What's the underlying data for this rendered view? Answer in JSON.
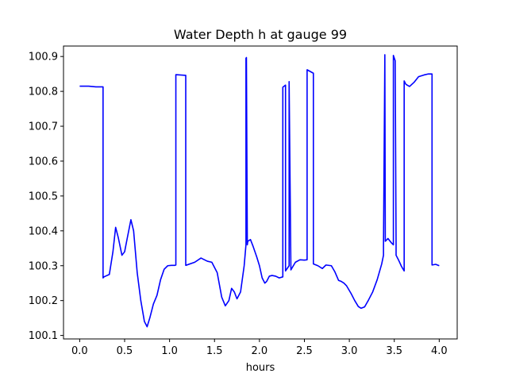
{
  "chart_data": {
    "type": "line",
    "title": "Water Depth h at gauge 99",
    "xlabel": "hours",
    "ylabel": "",
    "xlim": [
      -0.18,
      4.2
    ],
    "ylim": [
      100.09,
      100.93
    ],
    "xticks": [
      0.0,
      0.5,
      1.0,
      1.5,
      2.0,
      2.5,
      3.0,
      3.5,
      4.0
    ],
    "xtick_labels": [
      "0.0",
      "0.5",
      "1.0",
      "1.5",
      "2.0",
      "2.5",
      "3.0",
      "3.5",
      "4.0"
    ],
    "yticks": [
      100.1,
      100.2,
      100.3,
      100.4,
      100.5,
      100.6,
      100.7,
      100.8,
      100.9
    ],
    "ytick_labels": [
      "100.1",
      "100.2",
      "100.3",
      "100.4",
      "100.5",
      "100.6",
      "100.7",
      "100.8",
      "100.9"
    ],
    "grid": false,
    "legend": "none",
    "series": [
      {
        "color": "#0000ff",
        "x": [
          0.0,
          0.1,
          0.18,
          0.26,
          0.26,
          0.27,
          0.33,
          0.37,
          0.4,
          0.43,
          0.47,
          0.5,
          0.53,
          0.57,
          0.6,
          0.64,
          0.68,
          0.72,
          0.75,
          0.78,
          0.82,
          0.86,
          0.9,
          0.94,
          0.98,
          1.02,
          1.06,
          1.07,
          1.07,
          1.18,
          1.18,
          1.28,
          1.35,
          1.42,
          1.47,
          1.53,
          1.58,
          1.62,
          1.66,
          1.69,
          1.72,
          1.75,
          1.79,
          1.83,
          1.85,
          1.85,
          1.855,
          1.865,
          1.87,
          1.9,
          1.93,
          1.97,
          2.0,
          2.03,
          2.06,
          2.08,
          2.11,
          2.14,
          2.18,
          2.22,
          2.26,
          2.26,
          2.29,
          2.29,
          2.33,
          2.33,
          2.35,
          2.4,
          2.45,
          2.5,
          2.53,
          2.53,
          2.6,
          2.6,
          2.65,
          2.7,
          2.74,
          2.8,
          2.84,
          2.88,
          2.91,
          2.94,
          2.97,
          3.02,
          3.06,
          3.1,
          3.13,
          3.17,
          3.21,
          3.26,
          3.31,
          3.36,
          3.38,
          3.38,
          3.395,
          3.4,
          3.43,
          3.47,
          3.49,
          3.49,
          3.51,
          3.52,
          3.52,
          3.55,
          3.58,
          3.61,
          3.61,
          3.63,
          3.67,
          3.72,
          3.77,
          3.83,
          3.88,
          3.92,
          3.92,
          3.96,
          4.0
        ],
        "y": [
          100.815,
          100.815,
          100.813,
          100.813,
          100.265,
          100.268,
          100.275,
          100.34,
          100.41,
          100.38,
          100.33,
          100.34,
          100.38,
          100.432,
          100.4,
          100.28,
          100.2,
          100.14,
          100.125,
          100.15,
          100.19,
          100.215,
          100.26,
          100.29,
          100.3,
          100.301,
          100.301,
          100.302,
          100.848,
          100.846,
          100.301,
          100.31,
          100.322,
          100.313,
          100.31,
          100.28,
          100.21,
          100.185,
          100.2,
          100.235,
          100.225,
          100.205,
          100.225,
          100.3,
          100.36,
          100.895,
          100.897,
          100.36,
          100.37,
          100.375,
          100.355,
          100.325,
          100.3,
          100.265,
          100.25,
          100.255,
          100.27,
          100.272,
          100.27,
          100.265,
          100.268,
          100.812,
          100.818,
          100.285,
          100.3,
          100.828,
          100.288,
          100.31,
          100.317,
          100.316,
          100.317,
          100.862,
          100.852,
          100.305,
          100.3,
          100.292,
          100.302,
          100.3,
          100.282,
          100.258,
          100.255,
          100.25,
          100.242,
          100.22,
          100.2,
          100.183,
          100.178,
          100.182,
          100.2,
          100.225,
          100.26,
          100.305,
          100.33,
          100.355,
          100.905,
          100.37,
          100.378,
          100.365,
          100.36,
          100.903,
          100.888,
          100.36,
          100.33,
          100.315,
          100.298,
          100.285,
          100.83,
          100.82,
          100.814,
          100.826,
          100.842,
          100.847,
          100.85,
          100.85,
          100.302,
          100.304,
          100.3
        ]
      }
    ]
  }
}
